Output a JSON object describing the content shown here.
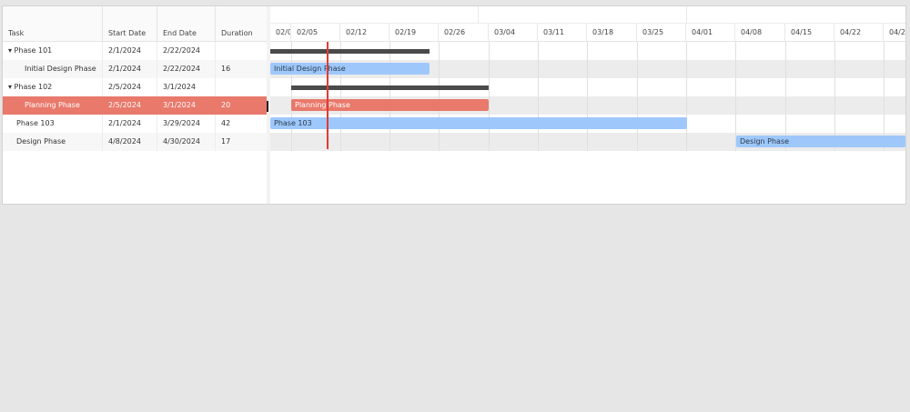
{
  "grid": {
    "columns": [
      "Task",
      "Start Date",
      "End Date",
      "Duration"
    ],
    "rows": [
      {
        "task": "▾ Phase 101",
        "start": "2/1/2024",
        "end": "2/22/2024",
        "duration": ""
      },
      {
        "task": "Initial Design Phase",
        "start": "2/1/2024",
        "end": "2/22/2024",
        "duration": "16"
      },
      {
        "task": "▾ Phase 102",
        "start": "2/5/2024",
        "end": "3/1/2024",
        "duration": ""
      },
      {
        "task": "Planning Phase",
        "start": "2/5/2024",
        "end": "3/1/2024",
        "duration": "20"
      },
      {
        "task": "Phase 103",
        "start": "2/1/2024",
        "end": "3/29/2024",
        "duration": "42"
      },
      {
        "task": "Design Phase",
        "start": "4/8/2024",
        "end": "4/30/2024",
        "duration": "17"
      }
    ]
  },
  "timeline": {
    "weeks": [
      "02/0",
      "02/05",
      "02/12",
      "02/19",
      "02/26",
      "03/04",
      "03/11",
      "03/18",
      "03/25",
      "04/01",
      "04/08",
      "04/15",
      "04/22",
      "04/2"
    ]
  },
  "bars": {
    "initial_design": "Initial Design Phase",
    "planning": "Planning Phase",
    "phase103": "Phase 103",
    "design": "Design Phase"
  },
  "colors": {
    "selected_row": "#e8796b",
    "task_bar": "#9ec8fb",
    "project_bar": "#4a4a4a",
    "today_marker": "#e53935"
  }
}
